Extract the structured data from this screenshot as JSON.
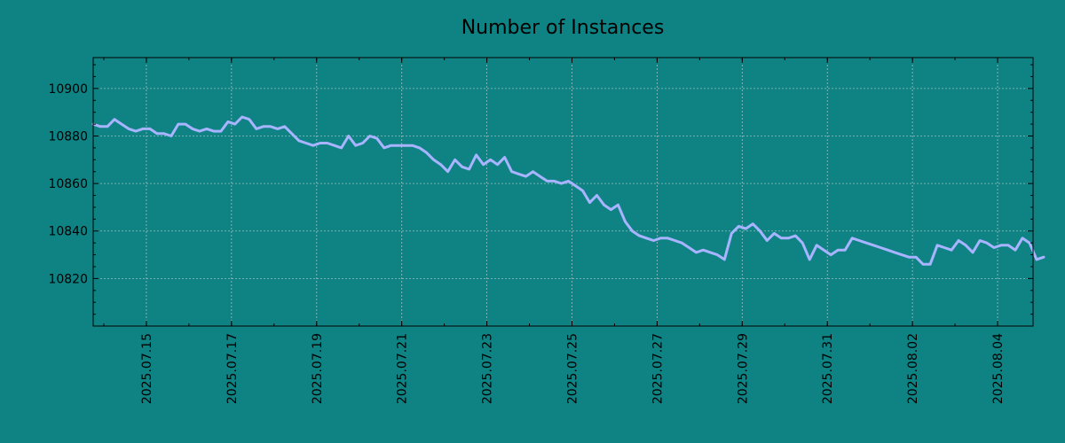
{
  "chart_data": {
    "type": "line",
    "title": "Number of Instances",
    "xlabel": "",
    "ylabel": "",
    "x_start": "2025-07-13 18:00",
    "step_hours": 4,
    "xlim": [
      "2025-07-13 18:00",
      "2025-08-04 20:00"
    ],
    "ylim": [
      10800,
      10913
    ],
    "x_ticks": [
      "2025.07.15",
      "2025.07.17",
      "2025.07.19",
      "2025.07.21",
      "2025.07.23",
      "2025.07.25",
      "2025.07.27",
      "2025.07.29",
      "2025.07.31",
      "2025.08.02",
      "2025.08.04"
    ],
    "y_ticks": [
      10820,
      10840,
      10860,
      10880,
      10900
    ],
    "grid": true,
    "line_color": "#a8b4ff",
    "series": [
      {
        "values": [
          10885,
          10884,
          10884,
          10887,
          10885,
          10883,
          10882,
          10883,
          10883,
          10881,
          10881,
          10880,
          10885,
          10885,
          10883,
          10882,
          10883,
          10882,
          10882,
          10886,
          10885,
          10888,
          10887,
          10883,
          10884,
          10884,
          10883,
          10884,
          10881,
          10878,
          10877,
          10876,
          10877,
          10877,
          10876,
          10875,
          10880,
          10876,
          10877,
          10880,
          10879,
          10875,
          10876,
          10876,
          10876,
          10876,
          10875,
          10873,
          10870,
          10868,
          10865,
          10870,
          10867,
          10866,
          10872,
          10868,
          10870,
          10868,
          10871,
          10865,
          10864,
          10863,
          10865,
          10863,
          10861,
          10861,
          10860,
          10861,
          10859,
          10857,
          10852,
          10855,
          10851,
          10849,
          10851,
          10844,
          10840,
          10838,
          10837,
          10836,
          10837,
          10837,
          10836,
          10835,
          10833,
          10831,
          10832,
          10831,
          10830,
          10828,
          10839,
          10842,
          10841,
          10843,
          10840,
          10836,
          10839,
          10837,
          10837,
          10838,
          10835,
          10828,
          10834,
          10832,
          10830,
          10832,
          10832,
          10837,
          10836,
          10835,
          10834,
          10833,
          10832,
          10831,
          10830,
          10829,
          10829,
          10826,
          10826,
          10834,
          10833,
          10832,
          10836,
          10834,
          10831,
          10836,
          10835,
          10833,
          10834,
          10834,
          10832,
          10837,
          10835,
          10828,
          10829
        ]
      }
    ]
  }
}
